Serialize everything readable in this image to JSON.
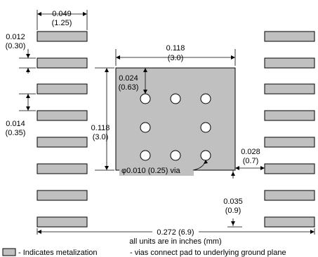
{
  "dimensions": {
    "pad_width": {
      "inch": "0.049",
      "mm": "(1.25)"
    },
    "pad_height": {
      "inch": "0.012",
      "mm": "(0.30)"
    },
    "pad_pitch": {
      "inch": "0.014",
      "mm": "(0.35)"
    },
    "center_pad_width": {
      "inch": "0.118",
      "mm": "(3.0)"
    },
    "center_pad_height": {
      "inch": "0.118",
      "mm": "(3.0)"
    },
    "via_offset": {
      "inch": "0.024",
      "mm": "(0.63)"
    },
    "pad_to_center_gap": {
      "inch": "0.028",
      "mm": "(0.7)"
    },
    "center_to_row_gap": {
      "inch": "0.035",
      "mm": "(0.9)"
    },
    "overall_width": "0.272 (6.9)",
    "via_label": "φ0.010 (0.25) via"
  },
  "notes": {
    "units": "all units are in inches (mm)",
    "metalization": "- Indicates metalization",
    "vias": "- vias connect pad to underlying ground plane"
  }
}
